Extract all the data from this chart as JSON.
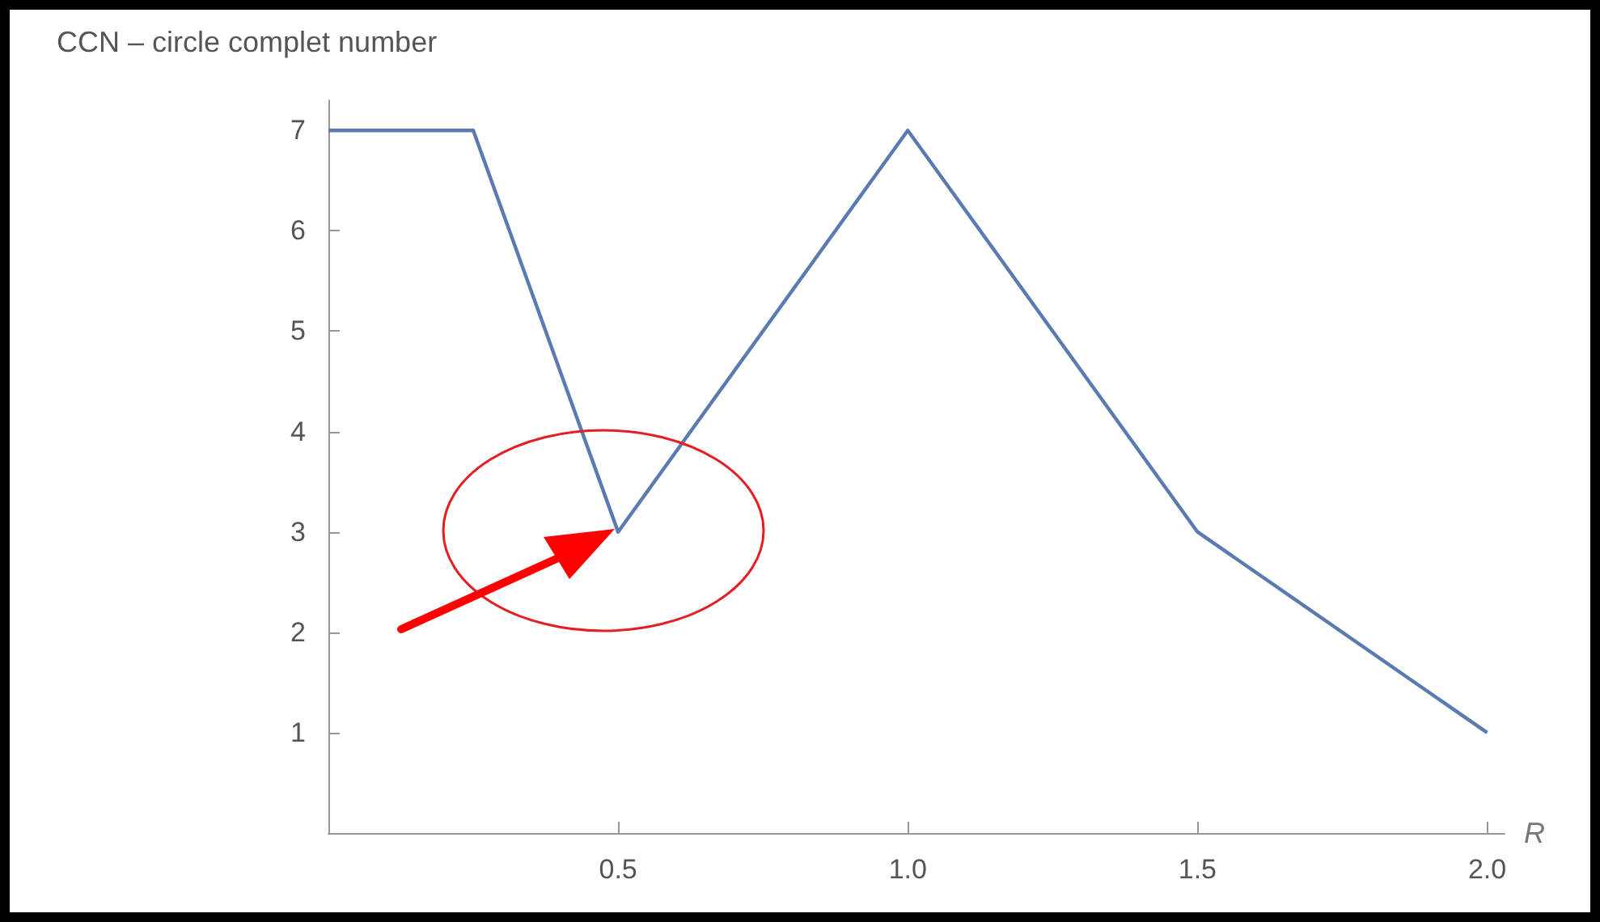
{
  "chart_data": {
    "type": "line",
    "title": "CCN – circle complet number",
    "xlabel": "R",
    "x": [
      0,
      0.25,
      0.5,
      1.0,
      1.5,
      2.0
    ],
    "series": [
      {
        "color": "#5b7bb0",
        "values": [
          7,
          7,
          3,
          7,
          3,
          1
        ]
      }
    ],
    "xlim": [
      0,
      2.03
    ],
    "xticks": [
      0.5,
      {
        "value": 1,
        "label": "1.0"
      },
      1.5,
      {
        "value": 2,
        "label": "2.0"
      }
    ],
    "ylim": [
      0,
      7.3
    ],
    "yticks": [
      1,
      2,
      3,
      4,
      5,
      6,
      7
    ],
    "grid": false,
    "marker": "none",
    "line_style": "solid"
  }
}
